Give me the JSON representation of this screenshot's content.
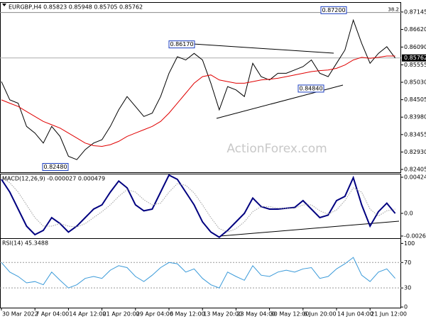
{
  "chart_data": [
    {
      "type": "line",
      "title": "EURGBP,H4  0.85823 0.85948 0.85705 0.85762",
      "watermark": "ActionForex.com",
      "ylim": [
        0.8232,
        0.874
      ],
      "yticks": [
        0.87145,
        {
          "value": 0.8662,
          "label": "0.86620"
        },
        {
          "value": 0.8609,
          "label": "0.86090"
        },
        0.85555,
        {
          "value": 0.8503,
          "label": "0.85030"
        },
        0.84505,
        {
          "value": 0.8398,
          "label": "0.83980"
        },
        0.83455,
        {
          "value": 0.8293,
          "label": "0.82930"
        },
        0.82405
      ],
      "last": {
        "value": 0.85762,
        "label": "0.85762"
      },
      "fib_line": 0.8713,
      "fib_label": "38.2",
      "annotations": [
        {
          "value": 0.8617,
          "label": "0.86170"
        },
        {
          "value": 0.8484,
          "label": "0.84840"
        },
        {
          "value": 0.8248,
          "label": "0.82480"
        },
        {
          "value": 0.872,
          "label": "0.87200"
        }
      ],
      "series": [
        {
          "name": "EURGBP",
          "color": "#000000",
          "values": [
            0.8505,
            0.845,
            0.844,
            0.837,
            0.835,
            0.832,
            0.837,
            0.834,
            0.828,
            0.827,
            0.83,
            0.832,
            0.833,
            0.837,
            0.842,
            0.846,
            0.843,
            0.84,
            0.841,
            0.846,
            0.853,
            0.858,
            0.857,
            0.859,
            0.857,
            0.85,
            0.842,
            0.849,
            0.848,
            0.846,
            0.856,
            0.852,
            0.851,
            0.853,
            0.853,
            0.854,
            0.855,
            0.857,
            0.853,
            0.852,
            0.856,
            0.86,
            0.869,
            0.862,
            0.856,
            0.859,
            0.861,
            0.8576
          ]
        },
        {
          "name": "MA",
          "color": "#e00000",
          "values": [
            0.845,
            0.844,
            0.843,
            0.8415,
            0.84,
            0.8385,
            0.8375,
            0.8365,
            0.835,
            0.8335,
            0.832,
            0.8312,
            0.831,
            0.8315,
            0.8325,
            0.834,
            0.835,
            0.836,
            0.837,
            0.8385,
            0.841,
            0.844,
            0.847,
            0.85,
            0.852,
            0.8525,
            0.851,
            0.8505,
            0.85,
            0.85,
            0.8505,
            0.851,
            0.8512,
            0.8515,
            0.852,
            0.8525,
            0.853,
            0.8535,
            0.8538,
            0.854,
            0.8545,
            0.8555,
            0.857,
            0.8578,
            0.8575,
            0.8578,
            0.8582,
            0.8582
          ]
        }
      ]
    },
    {
      "type": "line",
      "title": "MACD(12,26,9) -0.000027 0.000479",
      "ylim": [
        -0.00292,
        0.0045
      ],
      "yticks": [
        0.004248,
        {
          "value": 0,
          "label": "0.0"
        },
        -0.002667
      ],
      "series": [
        {
          "name": "MACD",
          "color": "#000080",
          "style": "solid",
          "values": [
            0.004,
            0.0025,
            0.0005,
            -0.0015,
            -0.0025,
            -0.002,
            -0.0005,
            -0.0012,
            -0.0022,
            -0.0015,
            -0.0005,
            0.0005,
            0.001,
            0.0025,
            0.0038,
            0.003,
            0.001,
            0.0003,
            0.0005,
            0.0025,
            0.0045,
            0.004,
            0.0025,
            0.001,
            -0.001,
            -0.0022,
            -0.0028,
            -0.002,
            -0.001,
            0,
            0.0018,
            0.0008,
            0.0005,
            0.0005,
            0.0006,
            0.0007,
            0.0015,
            0.0005,
            -0.0005,
            -0.0002,
            0.0015,
            0.002,
            0.0042,
            0.001,
            -0.0015,
            0.0002,
            0.0012,
            0
          ]
        },
        {
          "name": "Signal",
          "color": "#a0a0a0",
          "style": "dotted",
          "values": [
            0.0042,
            0.0036,
            0.0025,
            0.001,
            -0.0005,
            -0.0015,
            -0.0015,
            -0.0012,
            -0.0015,
            -0.0016,
            -0.0012,
            -0.0005,
            0.0002,
            0.001,
            0.002,
            0.0028,
            0.0025,
            0.0016,
            0.001,
            0.0012,
            0.0025,
            0.0035,
            0.0033,
            0.0024,
            0.001,
            -0.0005,
            -0.0018,
            -0.0022,
            -0.0018,
            -0.001,
            0.0002,
            0.0008,
            0.0008,
            0.0006,
            0.0006,
            0.0006,
            0.001,
            0.001,
            0.0003,
            -0.0001,
            0.0004,
            0.0015,
            0.003,
            0.0025,
            0.0005,
            -0.0003,
            0.0003,
            0.0005
          ]
        }
      ]
    },
    {
      "type": "line",
      "title": "RSI(14) 45.3488",
      "ylim": [
        -1,
        106
      ],
      "yticks": [
        100,
        70,
        30,
        0
      ],
      "levels": [
        70,
        30
      ],
      "categories": [
        "30 Mar 2022",
        null,
        null,
        null,
        "7 Apr 04:00",
        null,
        null,
        null,
        "14 Apr 12:00",
        null,
        null,
        null,
        "21 Apr 20:00",
        null,
        null,
        null,
        "29 Apr 04:00",
        null,
        null,
        null,
        "6 May 12:00",
        null,
        null,
        null,
        "13 May 20:00",
        null,
        null,
        null,
        "23 May 04:00",
        null,
        null,
        null,
        "30 May 12:00",
        null,
        null,
        null,
        "6 Jun 20:00",
        null,
        null,
        null,
        "14 Jun 04:00",
        null,
        null,
        null,
        "21 Jun 12:00",
        null,
        null,
        null
      ],
      "series": [
        {
          "name": "RSI",
          "color": "#3a9ad9",
          "style": "solid",
          "values": [
            70,
            55,
            48,
            38,
            40,
            35,
            55,
            42,
            30,
            35,
            45,
            48,
            45,
            58,
            65,
            62,
            48,
            40,
            50,
            62,
            70,
            68,
            55,
            60,
            45,
            35,
            30,
            55,
            48,
            42,
            65,
            50,
            48,
            55,
            58,
            55,
            60,
            62,
            45,
            48,
            60,
            68,
            78,
            50,
            40,
            55,
            60,
            45
          ]
        }
      ]
    }
  ]
}
